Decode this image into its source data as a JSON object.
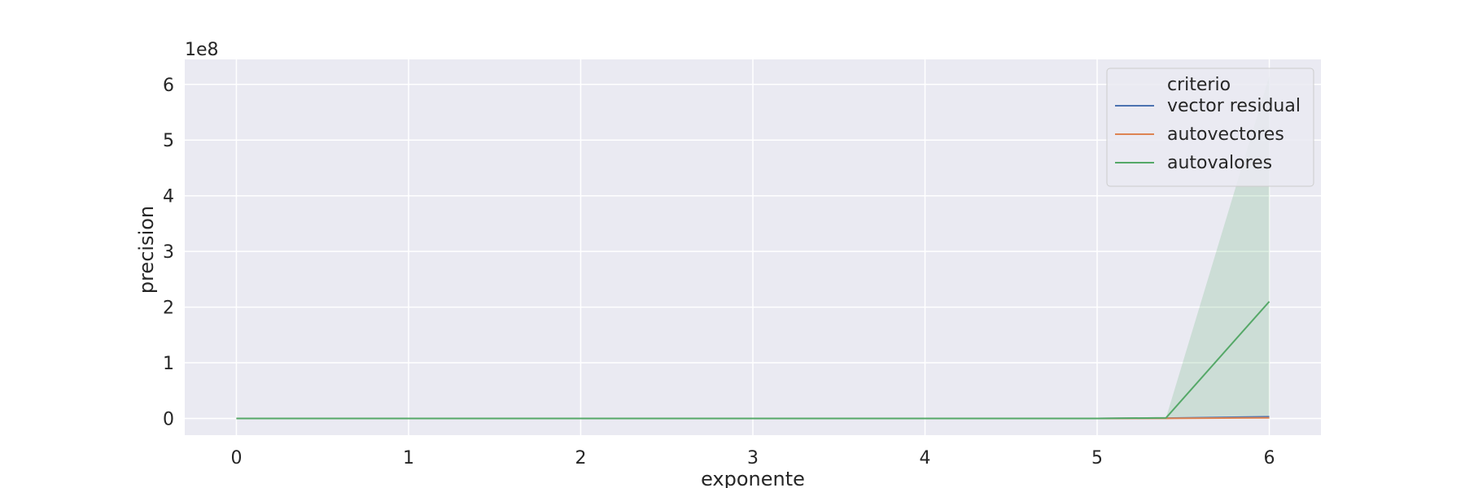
{
  "chart_data": {
    "type": "line",
    "xlabel": "exponente",
    "ylabel": "precision",
    "y_offset_label": "1e8",
    "xlim": [
      -0.3,
      6.3
    ],
    "ylim": [
      -0.3,
      6.45
    ],
    "x_ticks": [
      0,
      1,
      2,
      3,
      4,
      5,
      6
    ],
    "y_ticks": [
      0,
      1,
      2,
      3,
      4,
      5,
      6
    ],
    "grid": true,
    "legend": {
      "title": "criterio",
      "placement": "top-right"
    },
    "series": [
      {
        "name": "vector residual",
        "color": "#4c72b0",
        "x": [
          0,
          1,
          2,
          3,
          4,
          5,
          5.4,
          6
        ],
        "y": [
          0,
          0,
          0,
          0,
          0,
          0,
          0.005,
          0.03
        ]
      },
      {
        "name": "autovectores",
        "color": "#dd8452",
        "x": [
          0,
          1,
          2,
          3,
          4,
          5,
          5.4,
          6
        ],
        "y": [
          0,
          0,
          0,
          0,
          0,
          0,
          0.002,
          0.01
        ]
      },
      {
        "name": "autovalores",
        "color": "#55a868",
        "x": [
          0,
          1,
          2,
          3,
          4,
          5,
          5.4,
          6
        ],
        "y": [
          0,
          0,
          0,
          0,
          0,
          0,
          0.01,
          2.1
        ],
        "ci_lower": [
          0,
          0,
          0,
          0,
          0,
          0,
          0.01,
          0
        ],
        "ci_upper": [
          0,
          0,
          0,
          0,
          0,
          0,
          0.01,
          6.15
        ]
      }
    ]
  }
}
